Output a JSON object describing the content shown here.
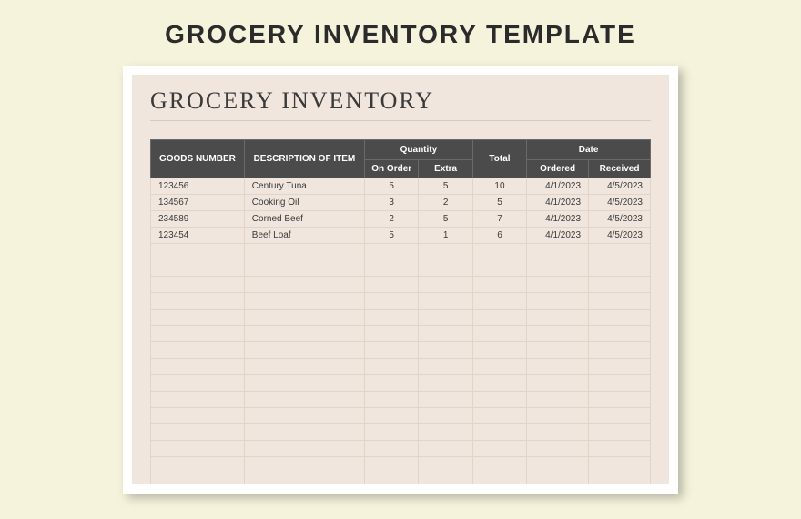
{
  "page": {
    "title": "GROCERY INVENTORY TEMPLATE",
    "background_color": "#f5f3db"
  },
  "sheet": {
    "title": "GROCERY INVENTORY",
    "sheet_bg": "#f1e6dd",
    "paper_bg": "#ffffff",
    "title_fontfamily": "Georgia",
    "title_fontsize": 26,
    "title_color": "#3a3a3a",
    "header_bg": "#4b4b4b",
    "header_text_color": "#ffffff",
    "grid_color": "#e2d5c8"
  },
  "table": {
    "columns": {
      "goods_number": "GOODS NUMBER",
      "description": "DESCRIPTION OF ITEM",
      "quantity_group": "Quantity",
      "on_order": "On Order",
      "extra": "Extra",
      "total": "Total",
      "date_group": "Date",
      "ordered": "Ordered",
      "received": "Received"
    },
    "rows": [
      {
        "goods_number": "123456",
        "description": "Century Tuna",
        "on_order": "5",
        "extra": "5",
        "total": "10",
        "ordered": "4/1/2023",
        "received": "4/5/2023"
      },
      {
        "goods_number": "134567",
        "description": "Cooking Oil",
        "on_order": "3",
        "extra": "2",
        "total": "5",
        "ordered": "4/1/2023",
        "received": "4/5/2023"
      },
      {
        "goods_number": "234589",
        "description": "Corned Beef",
        "on_order": "2",
        "extra": "5",
        "total": "7",
        "ordered": "4/1/2023",
        "received": "4/5/2023"
      },
      {
        "goods_number": "123454",
        "description": "Beef Loaf",
        "on_order": "5",
        "extra": "1",
        "total": "6",
        "ordered": "4/1/2023",
        "received": "4/5/2023"
      }
    ],
    "empty_rows": 18
  }
}
